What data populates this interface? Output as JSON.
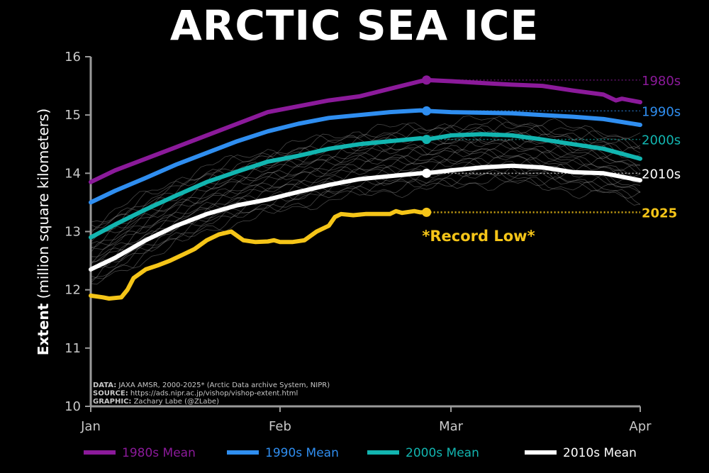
{
  "chart_data": {
    "type": "line",
    "title": "ARCTIC SEA ICE",
    "ylabel_bold": "Extent",
    "ylabel_rest": " (million square kilometers)",
    "xlabel": "",
    "ylim": [
      10,
      16
    ],
    "yticks": [
      10,
      11,
      12,
      13,
      14,
      15,
      16
    ],
    "xlim": [
      1,
      91
    ],
    "xticks": [
      {
        "label": "Jan",
        "day": 1
      },
      {
        "label": "Feb",
        "day": 32
      },
      {
        "label": "Mar",
        "day": 60
      },
      {
        "label": "Apr",
        "day": 91
      }
    ],
    "grid": false,
    "legend_position": "bottom",
    "annotation": "*Record Low*",
    "credits": [
      {
        "bold": "DATA:",
        "text": " JAXA AMSR, 2000-2025* (Arctic Data archive System, NIPR)"
      },
      {
        "bold": "SOURCE:",
        "text": " https://ads.nipr.ac.jp/vishop/vishop-extent.html"
      },
      {
        "bold": "GRAPHIC:",
        "text": " Zachary Labe (@ZLabe)"
      }
    ],
    "series": [
      {
        "name": "1980s",
        "legend": "1980s Mean",
        "end_label": "1980s",
        "color": "#8b1a9a",
        "x": [
          1,
          5,
          10,
          15,
          20,
          25,
          30,
          35,
          40,
          45,
          50,
          55,
          56,
          60,
          65,
          70,
          75,
          80,
          85,
          87,
          88,
          91
        ],
        "y": [
          13.85,
          14.05,
          14.25,
          14.45,
          14.65,
          14.85,
          15.05,
          15.15,
          15.25,
          15.32,
          15.45,
          15.58,
          15.6,
          15.58,
          15.55,
          15.52,
          15.5,
          15.42,
          15.35,
          15.25,
          15.28,
          15.22
        ],
        "marker_x": 56,
        "marker_y": 15.6
      },
      {
        "name": "1990s",
        "legend": "1990s Mean",
        "end_label": "1990s",
        "color": "#2f8ef0",
        "x": [
          1,
          5,
          10,
          15,
          20,
          25,
          30,
          35,
          40,
          45,
          50,
          55,
          56,
          60,
          65,
          70,
          75,
          80,
          85,
          91
        ],
        "y": [
          13.5,
          13.7,
          13.92,
          14.15,
          14.35,
          14.55,
          14.72,
          14.85,
          14.95,
          15.0,
          15.05,
          15.08,
          15.07,
          15.05,
          15.04,
          15.03,
          15.0,
          14.97,
          14.93,
          14.83
        ],
        "marker_x": 56,
        "marker_y": 15.07
      },
      {
        "name": "2000s",
        "legend": "2000s Mean",
        "end_label": "2000s",
        "color": "#12b5b0",
        "x": [
          1,
          5,
          10,
          15,
          20,
          25,
          30,
          35,
          40,
          45,
          50,
          55,
          56,
          60,
          65,
          70,
          75,
          80,
          85,
          91
        ],
        "y": [
          12.9,
          13.12,
          13.38,
          13.62,
          13.85,
          14.03,
          14.2,
          14.3,
          14.42,
          14.5,
          14.55,
          14.6,
          14.58,
          14.65,
          14.67,
          14.65,
          14.58,
          14.5,
          14.42,
          14.25
        ],
        "marker_x": 56,
        "marker_y": 14.58
      },
      {
        "name": "2010s",
        "legend": "2010s Mean",
        "end_label": "2010s",
        "color": "#ffffff",
        "x": [
          1,
          5,
          10,
          15,
          20,
          25,
          30,
          35,
          40,
          45,
          50,
          55,
          56,
          60,
          65,
          70,
          75,
          80,
          85,
          91
        ],
        "y": [
          12.35,
          12.55,
          12.85,
          13.1,
          13.3,
          13.45,
          13.55,
          13.68,
          13.8,
          13.9,
          13.95,
          14.0,
          14.0,
          14.05,
          14.1,
          14.13,
          14.1,
          14.02,
          14.0,
          13.88
        ],
        "marker_x": 56,
        "marker_y": 14.0
      },
      {
        "name": "2025",
        "legend": "",
        "end_label": "2025",
        "color": "#f5c518",
        "x": [
          1,
          3,
          4,
          6,
          7,
          8,
          10,
          12,
          14,
          16,
          18,
          20,
          22,
          24,
          26,
          28,
          30,
          31,
          32,
          34,
          36,
          38,
          40,
          41,
          42,
          44,
          46,
          48,
          50,
          51,
          52,
          54,
          55,
          56
        ],
        "y": [
          11.9,
          11.87,
          11.85,
          11.87,
          12.0,
          12.2,
          12.35,
          12.42,
          12.5,
          12.6,
          12.7,
          12.85,
          12.95,
          13.0,
          12.85,
          12.82,
          12.83,
          12.85,
          12.82,
          12.82,
          12.85,
          13.0,
          13.1,
          13.25,
          13.3,
          13.28,
          13.3,
          13.3,
          13.3,
          13.35,
          13.32,
          13.35,
          13.33,
          13.33
        ],
        "marker_x": 56,
        "marker_y": 13.33
      }
    ]
  }
}
